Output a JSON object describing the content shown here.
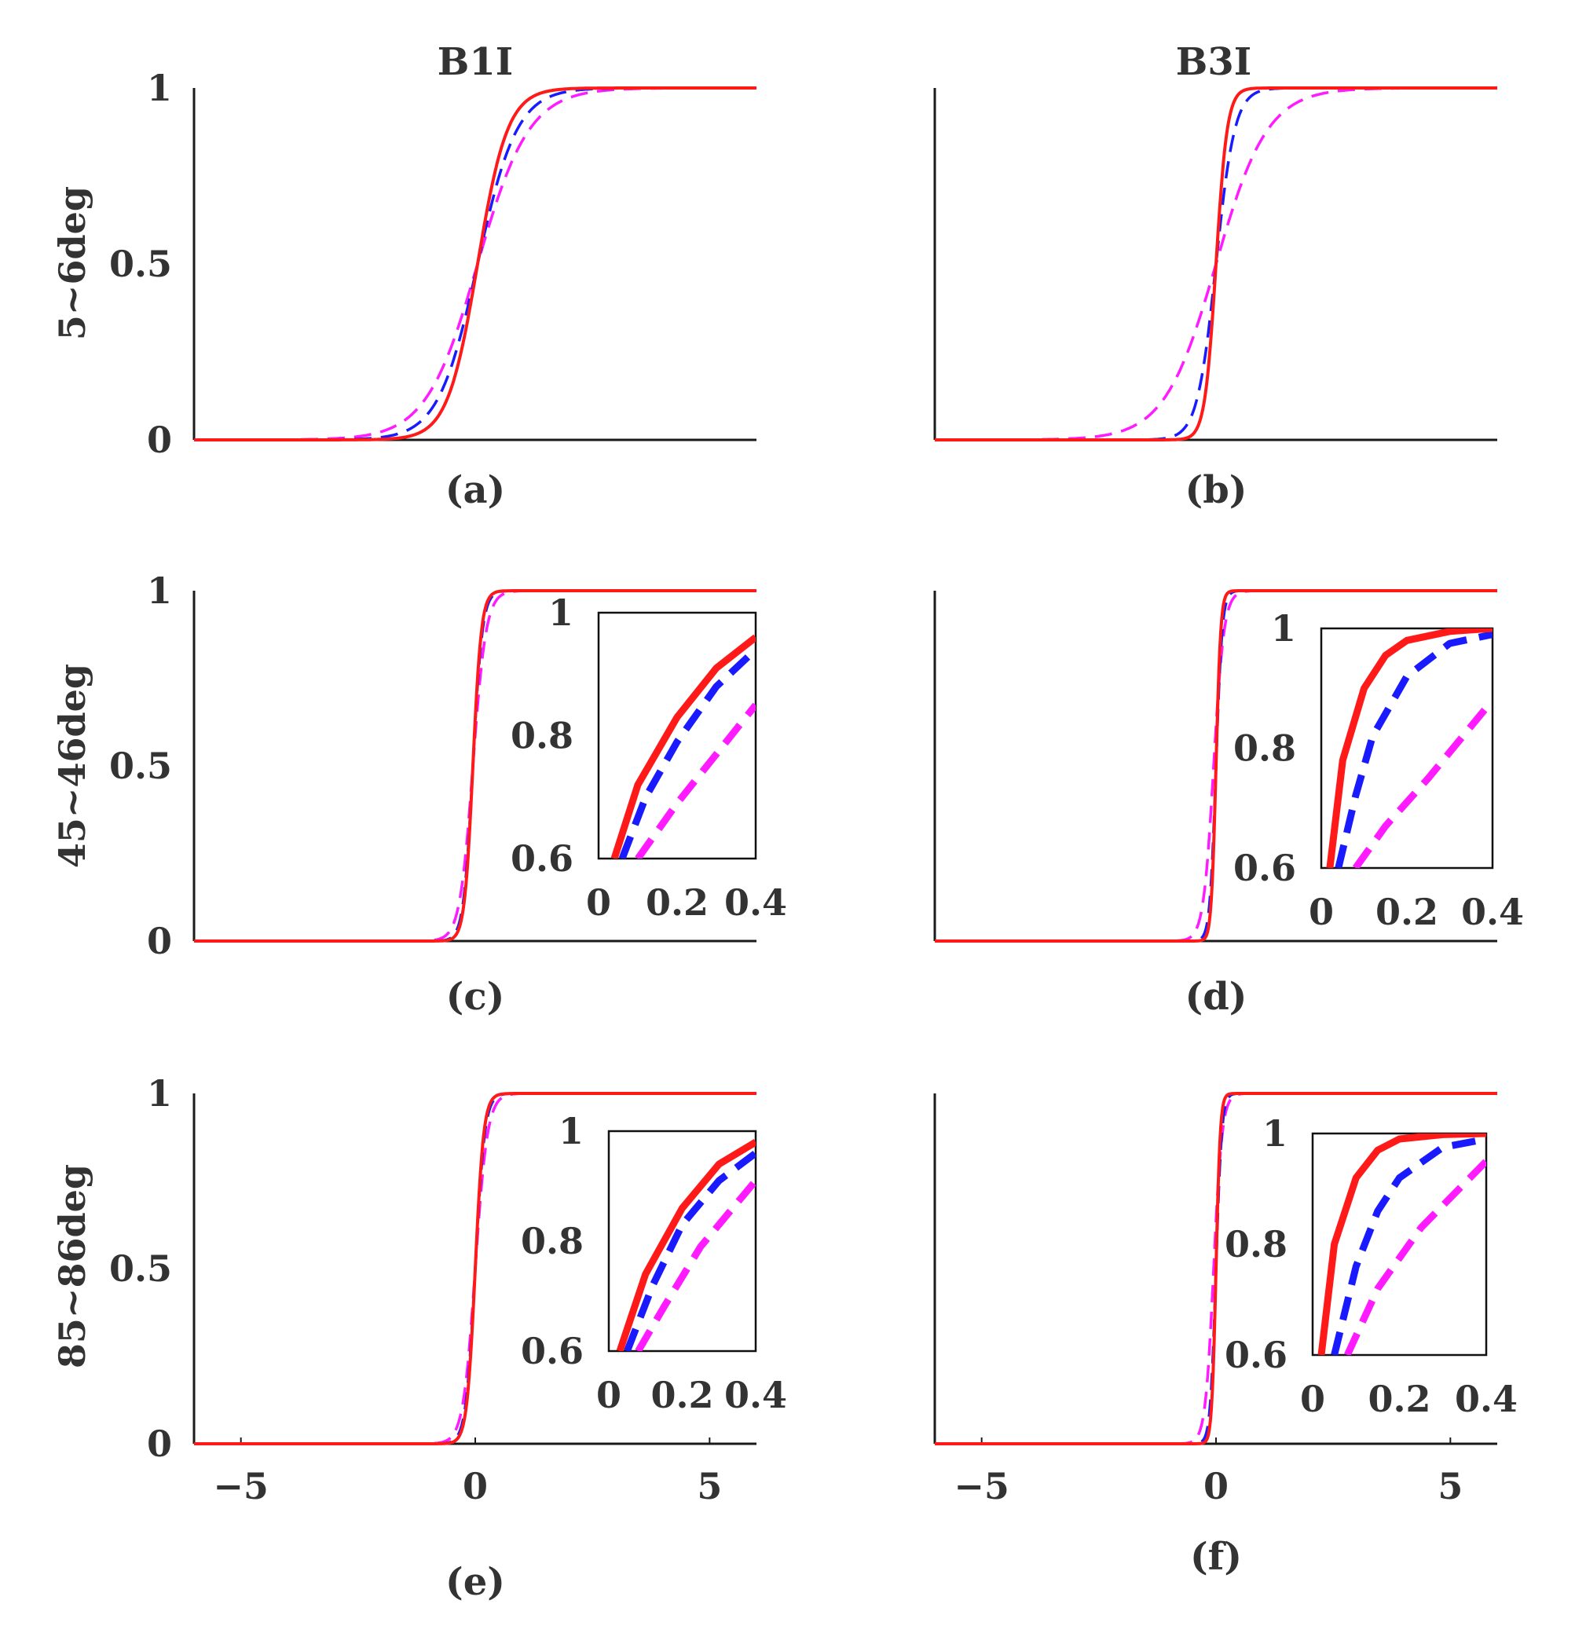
{
  "figure": {
    "column_titles": [
      "B1I",
      "B3I"
    ],
    "row_labels": [
      "5~6deg",
      "45~46deg",
      "85~86deg"
    ]
  },
  "colors": {
    "red_solid": "#ff1a1a",
    "blue_dashed": "#1a1aff",
    "magenta_dashed": "#ff1aff",
    "axis": "#1a1a1a",
    "text": "#333333"
  },
  "chart_data": [
    {
      "id": "a",
      "type": "line",
      "caption": "(a)",
      "column": "B1I",
      "row": "5~6deg",
      "xlim": [
        -6,
        6
      ],
      "ylim": [
        0,
        1
      ],
      "yticks": [
        "0",
        "0.5",
        "1"
      ],
      "xticks": [],
      "series": [
        {
          "name": "red",
          "style": "solid",
          "center": 0.05,
          "scale": 0.32
        },
        {
          "name": "blue",
          "style": "dashed",
          "center": 0.05,
          "scale": 0.42
        },
        {
          "name": "magenta",
          "style": "dashed",
          "center": 0.05,
          "scale": 0.55
        }
      ]
    },
    {
      "id": "b",
      "type": "line",
      "caption": "(b)",
      "column": "B3I",
      "row": "5~6deg",
      "xlim": [
        -6,
        6
      ],
      "ylim": [
        0,
        1
      ],
      "yticks": [],
      "xticks": [],
      "series": [
        {
          "name": "red",
          "style": "solid",
          "center": 0.0,
          "scale": 0.12
        },
        {
          "name": "blue",
          "style": "dashed",
          "center": 0.0,
          "scale": 0.2
        },
        {
          "name": "magenta",
          "style": "dashed",
          "center": 0.0,
          "scale": 0.55
        }
      ]
    },
    {
      "id": "c",
      "type": "line",
      "caption": "(c)",
      "column": "B1I",
      "row": "45~46deg",
      "xlim": [
        -6,
        6
      ],
      "ylim": [
        0,
        1
      ],
      "yticks": [
        "0",
        "0.5",
        "1"
      ],
      "xticks": [],
      "series": [
        {
          "name": "red",
          "style": "solid",
          "center": -0.05,
          "scale": 0.09
        },
        {
          "name": "blue",
          "style": "dashed",
          "center": -0.05,
          "scale": 0.1
        },
        {
          "name": "magenta",
          "style": "dashed",
          "center": -0.05,
          "scale": 0.14
        }
      ],
      "inset": {
        "xlim": [
          0,
          0.4
        ],
        "ylim": [
          0.6,
          1
        ],
        "xticks": [
          "0",
          "0.2",
          "0.4"
        ],
        "yticks": [
          "0.6",
          "0.8",
          "1"
        ],
        "series": [
          {
            "name": "red",
            "x": [
              0.04,
              0.1,
              0.2,
              0.3,
              0.4
            ],
            "y": [
              0.6,
              0.72,
              0.83,
              0.91,
              0.96
            ]
          },
          {
            "name": "blue",
            "x": [
              0.06,
              0.12,
              0.2,
              0.3,
              0.4
            ],
            "y": [
              0.6,
              0.7,
              0.79,
              0.88,
              0.94
            ]
          },
          {
            "name": "magenta",
            "x": [
              0.1,
              0.2,
              0.3,
              0.4
            ],
            "y": [
              0.6,
              0.69,
              0.77,
              0.85
            ]
          }
        ]
      }
    },
    {
      "id": "d",
      "type": "line",
      "caption": "(d)",
      "column": "B3I",
      "row": "45~46deg",
      "xlim": [
        -6,
        6
      ],
      "ylim": [
        0,
        1
      ],
      "yticks": [],
      "xticks": [],
      "series": [
        {
          "name": "red",
          "style": "solid",
          "center": 0.0,
          "scale": 0.05
        },
        {
          "name": "blue",
          "style": "dashed",
          "center": 0.0,
          "scale": 0.065
        },
        {
          "name": "magenta",
          "style": "dashed",
          "center": -0.05,
          "scale": 0.11
        }
      ],
      "inset": {
        "xlim": [
          0,
          0.4
        ],
        "ylim": [
          0.6,
          1
        ],
        "xticks": [
          "0",
          "0.2",
          "0.4"
        ],
        "yticks": [
          "0.6",
          "0.8",
          "1"
        ],
        "series": [
          {
            "name": "red",
            "x": [
              0.02,
              0.05,
              0.1,
              0.15,
              0.2,
              0.3,
              0.4
            ],
            "y": [
              0.6,
              0.78,
              0.9,
              0.955,
              0.98,
              0.995,
              1.0
            ]
          },
          {
            "name": "blue",
            "x": [
              0.04,
              0.08,
              0.12,
              0.2,
              0.3,
              0.4
            ],
            "y": [
              0.6,
              0.72,
              0.82,
              0.92,
              0.975,
              0.99
            ]
          },
          {
            "name": "magenta",
            "x": [
              0.08,
              0.15,
              0.25,
              0.4
            ],
            "y": [
              0.6,
              0.67,
              0.75,
              0.88
            ]
          }
        ]
      }
    },
    {
      "id": "e",
      "type": "line",
      "caption": "(e)",
      "column": "B1I",
      "row": "85~86deg",
      "xlim": [
        -6,
        6
      ],
      "ylim": [
        0,
        1
      ],
      "yticks": [
        "0",
        "0.5",
        "1"
      ],
      "xticks": [
        "−5",
        "0",
        "5"
      ],
      "series": [
        {
          "name": "red",
          "style": "solid",
          "center": 0.0,
          "scale": 0.09
        },
        {
          "name": "blue",
          "style": "dashed",
          "center": 0.0,
          "scale": 0.1
        },
        {
          "name": "magenta",
          "style": "dashed",
          "center": 0.0,
          "scale": 0.13
        }
      ],
      "inset": {
        "xlim": [
          0,
          0.4
        ],
        "ylim": [
          0.6,
          1
        ],
        "xticks": [
          "0",
          "0.2",
          "0.4"
        ],
        "yticks": [
          "0.6",
          "0.8",
          "1"
        ],
        "series": [
          {
            "name": "red",
            "x": [
              0.03,
              0.1,
              0.2,
              0.3,
              0.4
            ],
            "y": [
              0.6,
              0.74,
              0.86,
              0.94,
              0.98
            ]
          },
          {
            "name": "blue",
            "x": [
              0.05,
              0.12,
              0.2,
              0.3,
              0.4
            ],
            "y": [
              0.6,
              0.72,
              0.83,
              0.91,
              0.96
            ]
          },
          {
            "name": "magenta",
            "x": [
              0.08,
              0.15,
              0.25,
              0.4
            ],
            "y": [
              0.6,
              0.68,
              0.79,
              0.91
            ]
          }
        ]
      }
    },
    {
      "id": "f",
      "type": "line",
      "caption": "(f)",
      "column": "B3I",
      "row": "85~86deg",
      "xlim": [
        -6,
        6
      ],
      "ylim": [
        0,
        1
      ],
      "yticks": [],
      "xticks": [
        "−5",
        "0",
        "5"
      ],
      "series": [
        {
          "name": "red",
          "style": "solid",
          "center": 0.0,
          "scale": 0.045
        },
        {
          "name": "blue",
          "style": "dashed",
          "center": 0.0,
          "scale": 0.06
        },
        {
          "name": "magenta",
          "style": "dashed",
          "center": -0.05,
          "scale": 0.09
        }
      ],
      "inset": {
        "xlim": [
          0,
          0.4
        ],
        "ylim": [
          0.6,
          1
        ],
        "xticks": [
          "0",
          "0.2",
          "0.4"
        ],
        "yticks": [
          "0.6",
          "0.8",
          "1"
        ],
        "series": [
          {
            "name": "red",
            "x": [
              0.02,
              0.05,
              0.1,
              0.15,
              0.2,
              0.3,
              0.4
            ],
            "y": [
              0.6,
              0.8,
              0.92,
              0.97,
              0.99,
              0.998,
              1.0
            ]
          },
          {
            "name": "blue",
            "x": [
              0.05,
              0.1,
              0.15,
              0.2,
              0.3,
              0.4
            ],
            "y": [
              0.6,
              0.76,
              0.86,
              0.92,
              0.975,
              0.99
            ]
          },
          {
            "name": "magenta",
            "x": [
              0.08,
              0.15,
              0.25,
              0.4
            ],
            "y": [
              0.6,
              0.72,
              0.83,
              0.95
            ]
          }
        ]
      }
    }
  ]
}
